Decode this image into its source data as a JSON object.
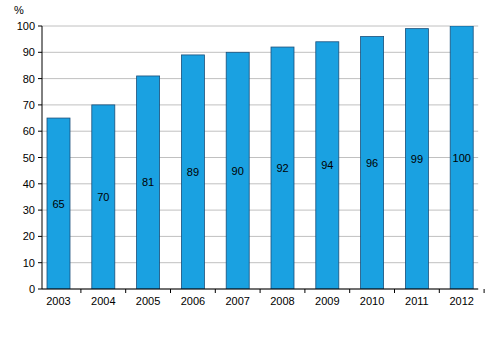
{
  "chart_data": {
    "type": "bar",
    "y_label": "%",
    "categories": [
      "2003",
      "2004",
      "2005",
      "2006",
      "2007",
      "2008",
      "2009",
      "2010",
      "2011",
      "2012"
    ],
    "values": [
      65,
      70,
      81,
      89,
      90,
      92,
      94,
      96,
      99,
      100
    ],
    "color": "#1aa1e1",
    "ylim": [
      0,
      100
    ],
    "yticks": [
      0,
      10,
      20,
      30,
      40,
      50,
      60,
      70,
      80,
      90,
      100
    ],
    "grid": true,
    "data_labels": true
  }
}
